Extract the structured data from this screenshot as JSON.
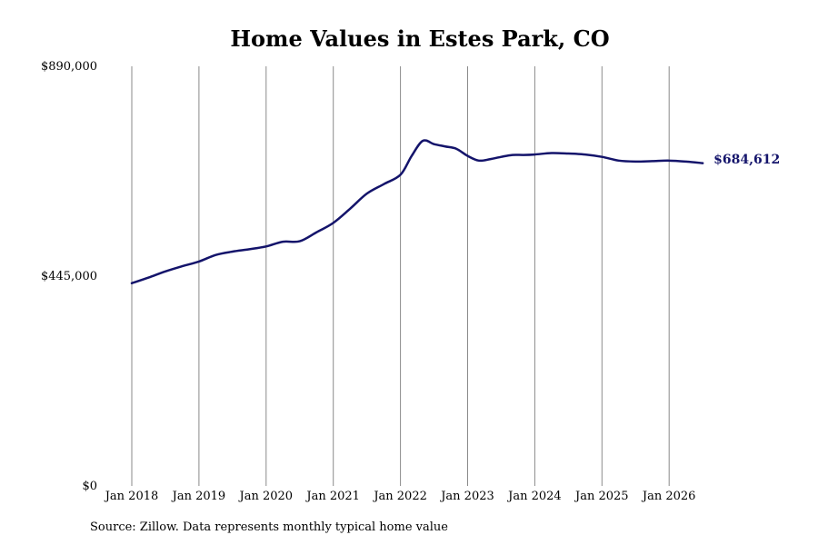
{
  "source_note": "Source: Zillow. Data represents monthly typical home value",
  "chart_data": {
    "type": "line",
    "title": "Home Values in Estes Park, CO",
    "xlabel": "",
    "ylabel": "",
    "ylim": [
      0,
      890000
    ],
    "y_ticks": [
      0,
      445000,
      890000
    ],
    "y_tick_labels": [
      "$0",
      "$445,000",
      "$890,000"
    ],
    "x_ticks": [
      "2018-01",
      "2019-01",
      "2020-01",
      "2021-01",
      "2022-01",
      "2023-01",
      "2024-01",
      "2025-01",
      "2026-01"
    ],
    "x_tick_labels": [
      "Jan 2018",
      "Jan 2019",
      "Jan 2020",
      "Jan 2021",
      "Jan 2022",
      "Jan 2023",
      "Jan 2024",
      "Jan 2025",
      "Jan 2026"
    ],
    "grid": "vertical",
    "line_color": "#14146b",
    "end_label": "$684,612",
    "series": [
      {
        "x": [
          "2018-01",
          "2018-04",
          "2018-07",
          "2018-10",
          "2019-01",
          "2019-04",
          "2019-07",
          "2019-10",
          "2020-01",
          "2020-04",
          "2020-07",
          "2020-10",
          "2021-01",
          "2021-04",
          "2021-07",
          "2021-10",
          "2022-01",
          "2022-03",
          "2022-05",
          "2022-07",
          "2022-09",
          "2022-11",
          "2023-01",
          "2023-03",
          "2023-05",
          "2023-07",
          "2023-09",
          "2023-11",
          "2024-01",
          "2024-04",
          "2024-07",
          "2024-10",
          "2025-01",
          "2025-04",
          "2025-07",
          "2025-10",
          "2026-01",
          "2026-04",
          "2026-07"
        ],
        "values": [
          430000,
          442000,
          455000,
          466000,
          476000,
          490000,
          497000,
          502000,
          508000,
          518000,
          519000,
          538000,
          558000,
          588000,
          620000,
          640000,
          660000,
          700000,
          732000,
          725000,
          720000,
          715000,
          700000,
          690000,
          693000,
          698000,
          702000,
          702000,
          703000,
          706000,
          705000,
          703000,
          698000,
          690000,
          688000,
          689000,
          690000,
          688000,
          684612
        ]
      }
    ]
  }
}
